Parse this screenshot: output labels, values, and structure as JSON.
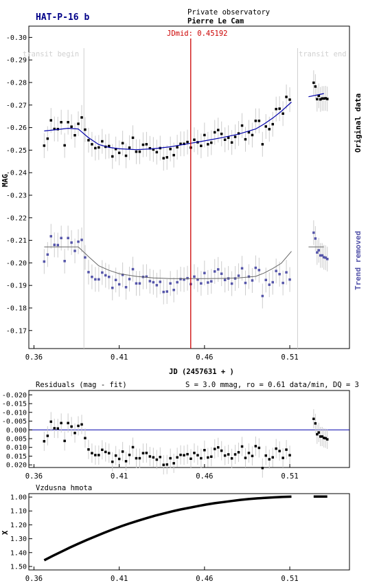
{
  "header": {
    "target": "HAT-P-16 b",
    "observatory_line1": "Private observatory",
    "observatory_line2": "Pierre Le Cam",
    "jdmid_label": "JDmid: 0.45192",
    "transit_begin_label": "transit begin",
    "transit_end_label": "transit end"
  },
  "colors": {
    "original_points": "#000000",
    "detrended_points": "#5555aa",
    "fit_line": "#0000aa",
    "jdmid_line": "#cc0000",
    "error_bars": "#cccccc",
    "transit_lines": "#d0d0d0",
    "jdmid_text": "#cc0000",
    "title": "#000088"
  },
  "chart_data": [
    {
      "type": "scatter",
      "name": "light-curve",
      "ylabel": "MAG",
      "xlabel": "JD (2457631 + )",
      "xlim": [
        0.357,
        0.545
      ],
      "ylim": [
        -0.305,
        -0.162
      ],
      "y_inverted": true,
      "x_ticks": [
        0.36,
        0.41,
        0.46,
        0.51
      ],
      "x_tick_labels": [
        "0.36",
        "0.41",
        "0.46",
        "0.51"
      ],
      "y_ticks": [
        -0.3,
        -0.29,
        -0.28,
        -0.27,
        -0.26,
        -0.25,
        -0.24,
        -0.23,
        -0.22,
        -0.21,
        -0.2,
        -0.19,
        -0.18,
        -0.17
      ],
      "y_tick_labels": [
        "-0.30",
        "-0.29",
        "-0.28",
        "-0.27",
        "-0.26",
        "-0.25",
        "-0.24",
        "-0.23",
        "-0.22",
        "-0.21",
        "-0.20",
        "-0.19",
        "-0.18",
        "-0.17"
      ],
      "transit_begin": 0.3893,
      "transit_end": 0.5146,
      "jdmid": 0.45192,
      "series_labels": [
        "Original data",
        "Trend removed"
      ],
      "original_fit_x": [
        0.366,
        0.372,
        0.38,
        0.386,
        0.392,
        0.398,
        0.404,
        0.41,
        0.42,
        0.43,
        0.44,
        0.45,
        0.46,
        0.47,
        0.48,
        0.49,
        0.495,
        0.5,
        0.505,
        0.511
      ],
      "original_fit_y": [
        -0.2585,
        -0.259,
        -0.2597,
        -0.2594,
        -0.2555,
        -0.2525,
        -0.2512,
        -0.2506,
        -0.2502,
        -0.2506,
        -0.2515,
        -0.2528,
        -0.2541,
        -0.2555,
        -0.2571,
        -0.2594,
        -0.2616,
        -0.2642,
        -0.2672,
        -0.2713
      ],
      "original_fit_x_2": [
        0.521,
        0.53
      ],
      "original_fit_y_2": [
        -0.2737,
        -0.2751
      ],
      "detrended_fit_x": [
        0.366,
        0.372,
        0.38,
        0.386,
        0.392,
        0.398,
        0.404,
        0.41,
        0.42,
        0.43,
        0.44,
        0.45,
        0.46,
        0.47,
        0.48,
        0.49,
        0.495,
        0.5,
        0.505,
        0.511
      ],
      "detrended_fit_y": [
        -0.2071,
        -0.2071,
        -0.2071,
        -0.2071,
        -0.2028,
        -0.1987,
        -0.1967,
        -0.1952,
        -0.194,
        -0.1933,
        -0.193,
        -0.193,
        -0.193,
        -0.1931,
        -0.1933,
        -0.194,
        -0.1955,
        -0.1975,
        -0.1998,
        -0.2051
      ],
      "detrended_fit_x_2": [
        0.521,
        0.53
      ],
      "detrended_fit_y_2": [
        -0.2071,
        -0.2071
      ],
      "original_x": [
        0.366,
        0.368,
        0.37,
        0.372,
        0.374,
        0.376,
        0.378,
        0.38,
        0.382,
        0.384,
        0.386,
        0.388,
        0.39,
        0.392,
        0.394,
        0.396,
        0.398,
        0.4,
        0.402,
        0.404,
        0.406,
        0.408,
        0.41,
        0.412,
        0.414,
        0.416,
        0.418,
        0.42,
        0.422,
        0.424,
        0.426,
        0.428,
        0.43,
        0.432,
        0.434,
        0.436,
        0.438,
        0.44,
        0.442,
        0.444,
        0.446,
        0.448,
        0.45,
        0.452,
        0.454,
        0.456,
        0.458,
        0.46,
        0.462,
        0.464,
        0.466,
        0.468,
        0.47,
        0.472,
        0.474,
        0.476,
        0.478,
        0.48,
        0.482,
        0.484,
        0.486,
        0.488,
        0.49,
        0.492,
        0.494,
        0.496,
        0.498,
        0.5,
        0.502,
        0.504,
        0.506,
        0.508,
        0.51,
        0.524,
        0.525,
        0.526,
        0.527,
        0.528,
        0.529,
        0.53,
        0.531,
        0.532
      ],
      "original_y": [
        -0.252,
        -0.2551,
        -0.2632,
        -0.2594,
        -0.2593,
        -0.2624,
        -0.2521,
        -0.2624,
        -0.2604,
        -0.2566,
        -0.2617,
        -0.2645,
        -0.2591,
        -0.2544,
        -0.2526,
        -0.2509,
        -0.2512,
        -0.2539,
        -0.2515,
        -0.2518,
        -0.2472,
        -0.2505,
        -0.2488,
        -0.2531,
        -0.2475,
        -0.2511,
        -0.2555,
        -0.2493,
        -0.2493,
        -0.2524,
        -0.2526,
        -0.2508,
        -0.2503,
        -0.2491,
        -0.2509,
        -0.2464,
        -0.2468,
        -0.2505,
        -0.2478,
        -0.2513,
        -0.2528,
        -0.2528,
        -0.2536,
        -0.2511,
        -0.2546,
        -0.2535,
        -0.2519,
        -0.2567,
        -0.2526,
        -0.2533,
        -0.2579,
        -0.2589,
        -0.2572,
        -0.2546,
        -0.2555,
        -0.2534,
        -0.2559,
        -0.2574,
        -0.2609,
        -0.2548,
        -0.2579,
        -0.2567,
        -0.263,
        -0.263,
        -0.2526,
        -0.2605,
        -0.2593,
        -0.2615,
        -0.2682,
        -0.2684,
        -0.2662,
        -0.2736,
        -0.2724,
        -0.2799,
        -0.2782,
        -0.2726,
        -0.2741,
        -0.2725,
        -0.2729,
        -0.2729,
        -0.273,
        -0.2727
      ],
      "detrended_x": [
        0.366,
        0.368,
        0.37,
        0.372,
        0.374,
        0.376,
        0.378,
        0.38,
        0.382,
        0.384,
        0.386,
        0.388,
        0.39,
        0.392,
        0.394,
        0.396,
        0.398,
        0.4,
        0.402,
        0.404,
        0.406,
        0.408,
        0.41,
        0.412,
        0.414,
        0.416,
        0.418,
        0.42,
        0.422,
        0.424,
        0.426,
        0.428,
        0.43,
        0.432,
        0.434,
        0.436,
        0.438,
        0.44,
        0.442,
        0.444,
        0.446,
        0.448,
        0.45,
        0.452,
        0.454,
        0.456,
        0.458,
        0.46,
        0.462,
        0.464,
        0.466,
        0.468,
        0.47,
        0.472,
        0.474,
        0.476,
        0.478,
        0.48,
        0.482,
        0.484,
        0.486,
        0.488,
        0.49,
        0.492,
        0.494,
        0.496,
        0.498,
        0.5,
        0.502,
        0.504,
        0.506,
        0.508,
        0.51,
        0.524,
        0.525,
        0.526,
        0.527,
        0.528,
        0.529,
        0.53,
        0.531,
        0.532
      ],
      "detrended_y": [
        -0.2006,
        -0.2037,
        -0.2118,
        -0.208,
        -0.2079,
        -0.211,
        -0.2008,
        -0.211,
        -0.209,
        -0.2053,
        -0.2094,
        -0.2102,
        -0.2024,
        -0.1959,
        -0.1938,
        -0.1927,
        -0.1927,
        -0.1957,
        -0.1945,
        -0.1938,
        -0.1889,
        -0.1924,
        -0.1905,
        -0.1947,
        -0.1892,
        -0.1928,
        -0.1972,
        -0.1909,
        -0.1909,
        -0.1938,
        -0.1939,
        -0.1919,
        -0.1914,
        -0.1901,
        -0.1916,
        -0.1871,
        -0.1873,
        -0.1909,
        -0.188,
        -0.1914,
        -0.1928,
        -0.1926,
        -0.1932,
        -0.1906,
        -0.1939,
        -0.1926,
        -0.1909,
        -0.1955,
        -0.1913,
        -0.1918,
        -0.1962,
        -0.1971,
        -0.1952,
        -0.1924,
        -0.1931,
        -0.1908,
        -0.1931,
        -0.1943,
        -0.1976,
        -0.1911,
        -0.1939,
        -0.1922,
        -0.1978,
        -0.1968,
        -0.1853,
        -0.1924,
        -0.1903,
        -0.1914,
        -0.1964,
        -0.195,
        -0.1911,
        -0.1958,
        -0.1926,
        -0.2134,
        -0.2108,
        -0.2046,
        -0.2056,
        -0.2033,
        -0.2033,
        -0.2025,
        -0.2023,
        -0.2017
      ],
      "error_bar": 0.0055
    },
    {
      "type": "scatter",
      "name": "residuals",
      "title": "Residuals (mag - fit)",
      "stats": "S = 3.0 mmag, ro = 0.61 data/min, DQ = 3",
      "xlim": [
        0.357,
        0.545
      ],
      "ylim": [
        -0.0225,
        0.0215
      ],
      "y_inverted": true,
      "x_ticks": [
        0.36,
        0.41,
        0.46,
        0.51
      ],
      "x_tick_labels": [
        "0.36",
        "0.41",
        "0.46",
        "0.51"
      ],
      "y_ticks": [
        -0.02,
        -0.015,
        -0.01,
        -0.005,
        0.0,
        0.005,
        0.01,
        0.015,
        0.02
      ],
      "y_tick_labels": [
        "-0.020",
        "-0.015",
        "-0.010",
        "-0.005",
        "0.000",
        "0.005",
        "0.010",
        "0.015",
        "0.020"
      ],
      "zero_line": 0.0,
      "x": [
        0.366,
        0.368,
        0.37,
        0.372,
        0.374,
        0.376,
        0.378,
        0.38,
        0.382,
        0.384,
        0.386,
        0.388,
        0.39,
        0.392,
        0.394,
        0.396,
        0.398,
        0.4,
        0.402,
        0.404,
        0.406,
        0.408,
        0.41,
        0.412,
        0.414,
        0.416,
        0.418,
        0.42,
        0.422,
        0.424,
        0.426,
        0.428,
        0.43,
        0.432,
        0.434,
        0.436,
        0.438,
        0.44,
        0.442,
        0.444,
        0.446,
        0.448,
        0.45,
        0.452,
        0.454,
        0.456,
        0.458,
        0.46,
        0.462,
        0.464,
        0.466,
        0.468,
        0.47,
        0.472,
        0.474,
        0.476,
        0.478,
        0.48,
        0.482,
        0.484,
        0.486,
        0.488,
        0.49,
        0.492,
        0.494,
        0.496,
        0.498,
        0.5,
        0.502,
        0.504,
        0.506,
        0.508,
        0.51,
        0.524,
        0.525,
        0.526,
        0.527,
        0.528,
        0.529,
        0.53,
        0.531,
        0.532
      ],
      "y": [
        0.0065,
        0.0034,
        -0.0047,
        -0.0009,
        -0.0008,
        -0.0039,
        0.0063,
        -0.0039,
        -0.0019,
        0.0018,
        -0.0023,
        -0.0031,
        0.0047,
        0.0112,
        0.0133,
        0.0144,
        0.0144,
        0.0114,
        0.0126,
        0.0133,
        0.0182,
        0.0147,
        0.0166,
        0.0124,
        0.0179,
        0.0143,
        0.0099,
        0.0162,
        0.0162,
        0.0133,
        0.0132,
        0.0152,
        0.0157,
        0.017,
        0.0155,
        0.02,
        0.0198,
        0.0162,
        0.0191,
        0.0157,
        0.0143,
        0.0145,
        0.0139,
        0.0165,
        0.0132,
        0.0145,
        0.0162,
        0.0116,
        0.0158,
        0.0153,
        0.0109,
        0.01,
        0.0119,
        0.0147,
        0.014,
        0.0163,
        0.014,
        0.0128,
        0.0095,
        0.016,
        0.0132,
        0.0149,
        0.0093,
        0.0103,
        0.0218,
        0.0147,
        0.0168,
        0.0157,
        0.0107,
        0.0121,
        0.016,
        0.0113,
        0.0145,
        -0.0063,
        -0.0037,
        0.0025,
        0.0015,
        0.0038,
        0.0038,
        0.0046,
        0.0048,
        0.0054
      ],
      "error_bar": 0.0055
    },
    {
      "type": "line",
      "name": "airmass",
      "title": "Vzdusna hmota",
      "ylabel": "X",
      "xlim": [
        0.357,
        0.545
      ],
      "ylim": [
        0.975,
        1.525
      ],
      "y_inverted": true,
      "x_ticks": [
        0.36,
        0.41,
        0.46,
        0.51
      ],
      "x_tick_labels": [
        "0.36",
        "0.41",
        "0.46",
        "0.51"
      ],
      "y_ticks": [
        1.0,
        1.1,
        1.2,
        1.3,
        1.4,
        1.5
      ],
      "y_tick_labels": [
        "1.00",
        "1.10",
        "1.20",
        "1.30",
        "1.40",
        "1.50"
      ],
      "x": [
        0.366,
        0.371,
        0.376,
        0.381,
        0.386,
        0.391,
        0.396,
        0.401,
        0.406,
        0.411,
        0.416,
        0.421,
        0.426,
        0.431,
        0.436,
        0.441,
        0.446,
        0.451,
        0.456,
        0.461,
        0.466,
        0.471,
        0.476,
        0.481,
        0.486,
        0.491,
        0.496,
        0.501,
        0.506,
        0.511
      ],
      "y": [
        1.455,
        1.424,
        1.394,
        1.364,
        1.336,
        1.309,
        1.283,
        1.258,
        1.234,
        1.211,
        1.19,
        1.17,
        1.152,
        1.134,
        1.118,
        1.103,
        1.089,
        1.077,
        1.065,
        1.054,
        1.044,
        1.036,
        1.028,
        1.02,
        1.014,
        1.009,
        1.005,
        1.002,
        0.999,
        0.997
      ],
      "x_2": [
        0.524,
        0.526,
        0.528,
        0.53,
        0.532
      ],
      "y_2": [
        0.996,
        0.996,
        0.996,
        0.996,
        0.996
      ]
    }
  ]
}
